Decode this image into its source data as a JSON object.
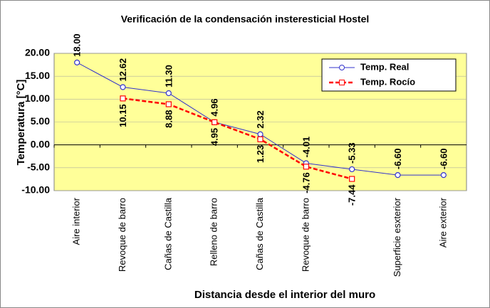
{
  "chart_data": {
    "type": "line",
    "title": "Verificación de la condensación insteresticial Hostel",
    "x_label": "Distancia desde el interior del muro",
    "y_label": "Temperatura [°C]",
    "categories": [
      "Aire interior",
      "Revoque de barro",
      "Cañas de Castilla",
      "Relleno de barro",
      "Cañas de Castilla",
      "Revoque de barro",
      null,
      "Superficie esxterior",
      "Aire exterior"
    ],
    "series": [
      {
        "name": "Temp. Real",
        "color": "#3333cc",
        "values": [
          18,
          12.62,
          11.3,
          4.96,
          2.32,
          -4.01,
          -5.33,
          -6.6,
          -6.6
        ],
        "value_labels": [
          "18.00",
          "12.62",
          "11.30",
          "4.96",
          "2.32",
          "-4.01",
          "-5.33",
          "-6.60",
          "-6.60"
        ]
      },
      {
        "name": "Temp. Rocío",
        "color": "#ff0000",
        "values": [
          null,
          10.15,
          8.88,
          4.95,
          1.23,
          -4.76,
          -7.44,
          null,
          null
        ],
        "value_labels": [
          null,
          "10.15",
          "8.88",
          "4.95",
          "1.23",
          "-4.76",
          "-7.44",
          null,
          null
        ]
      }
    ],
    "ylim": [
      -10,
      20
    ],
    "yticks": [
      {
        "value": -10,
        "label": "-10.00"
      },
      {
        "value": -5,
        "label": "-5.00"
      },
      {
        "value": 0,
        "label": "0.00"
      },
      {
        "value": 5,
        "label": "5.00"
      },
      {
        "value": 10,
        "label": "10.00"
      },
      {
        "value": 15,
        "label": "15.00"
      },
      {
        "value": 20,
        "label": "20.00"
      }
    ],
    "grid": true,
    "legend": "upper right"
  }
}
